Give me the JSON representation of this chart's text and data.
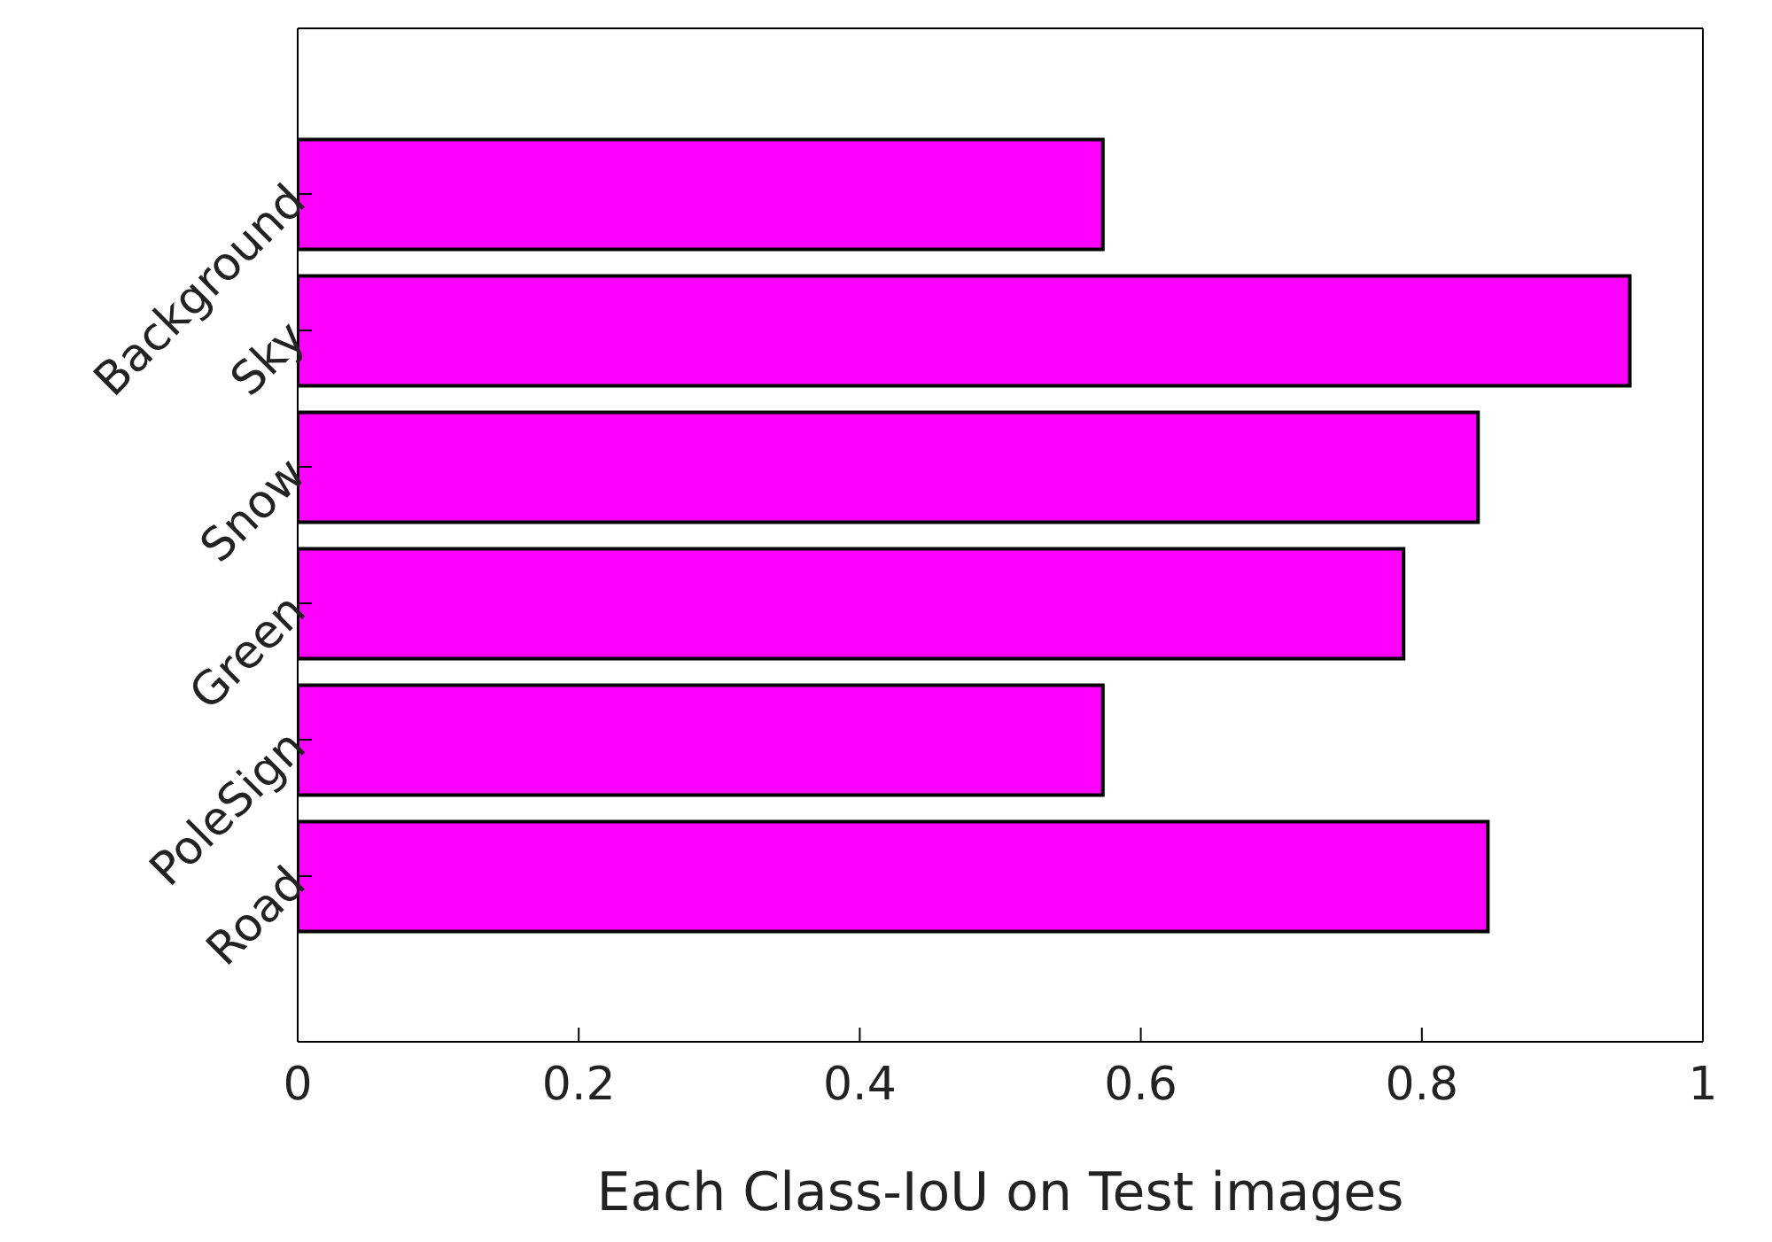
{
  "chart_data": {
    "type": "bar",
    "orientation": "horizontal",
    "xlabel": "Each Class-IoU on Test images",
    "categories": [
      "Background",
      "Sky",
      "Snow",
      "Green",
      "PoleSign",
      "Road"
    ],
    "values": [
      0.573,
      0.948,
      0.84,
      0.787,
      0.573,
      0.847
    ],
    "color": "#ff00ff",
    "xlim": [
      0,
      1
    ],
    "xticks": [
      0,
      0.2,
      0.4,
      0.6,
      0.8,
      1
    ],
    "grid": false,
    "legend": false
  }
}
